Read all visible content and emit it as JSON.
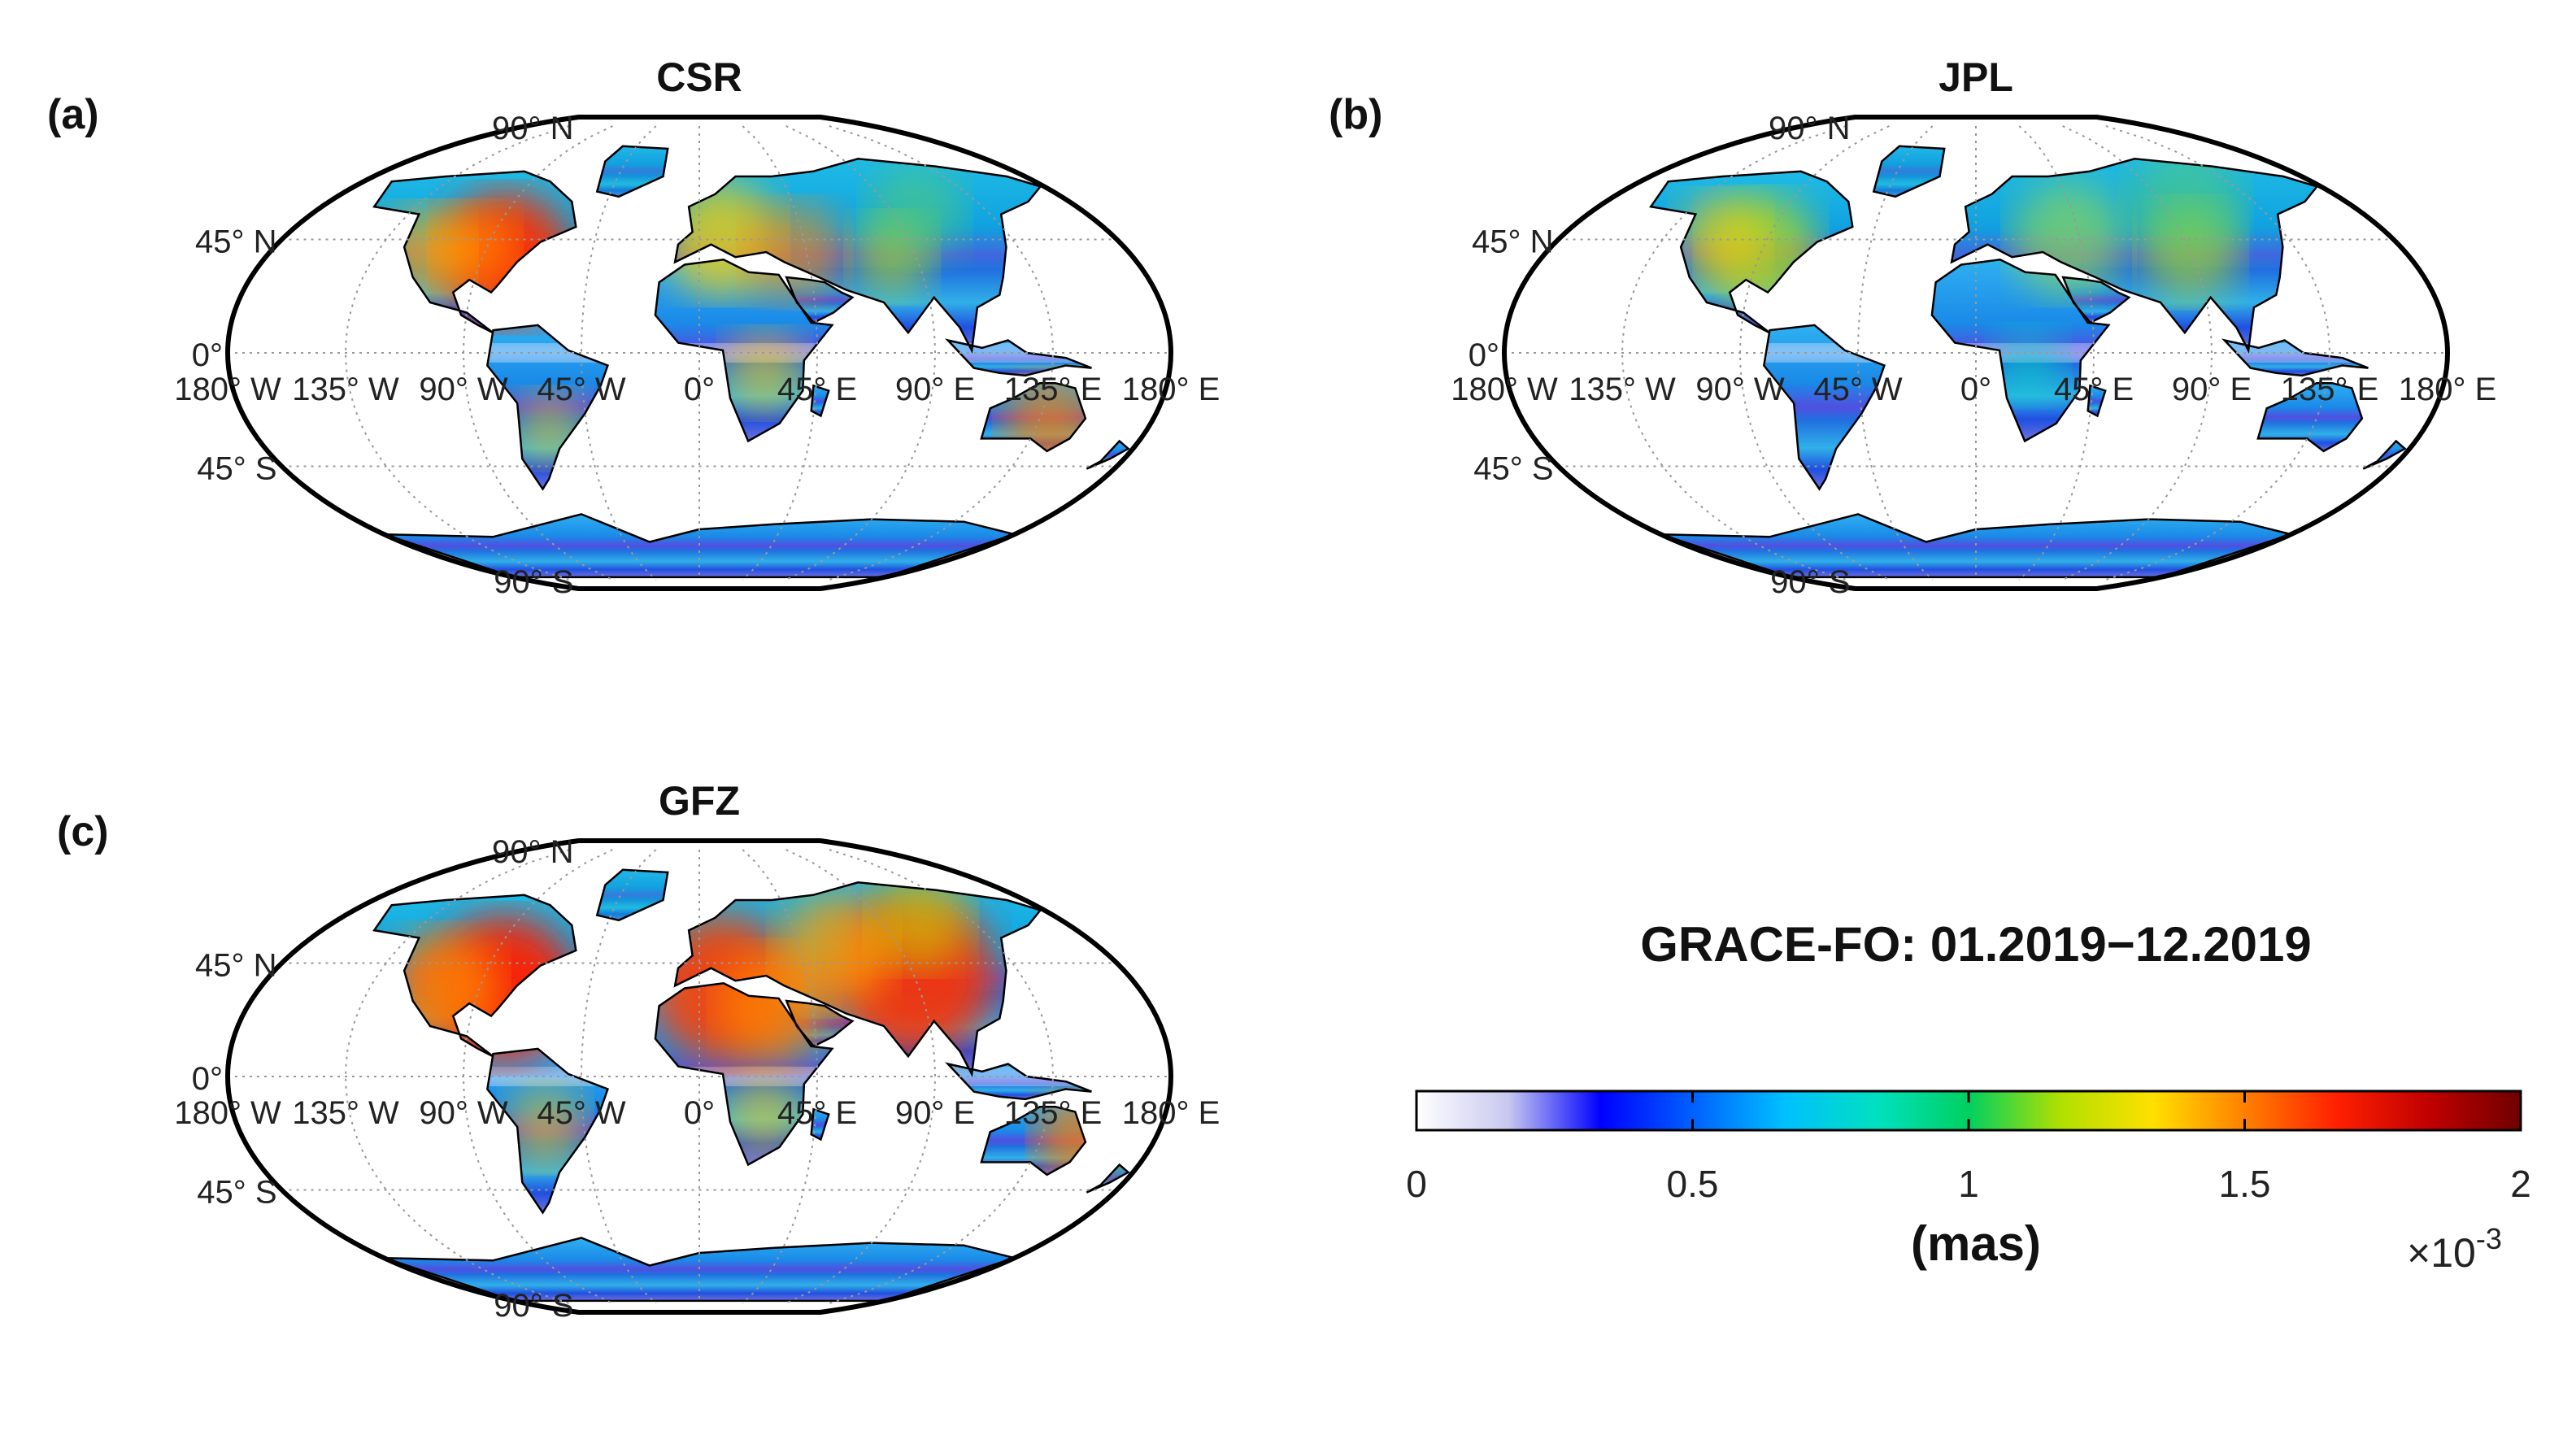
{
  "figure": {
    "panels": [
      {
        "letter": "(a)",
        "title": "CSR",
        "variant": "csr"
      },
      {
        "letter": "(b)",
        "title": "JPL",
        "variant": "jpl"
      },
      {
        "letter": "(c)",
        "title": "GFZ",
        "variant": "gfz"
      }
    ],
    "lat_labels": [
      "90° N",
      "45° N",
      "0°",
      "45° S",
      "90° S"
    ],
    "lon_labels": [
      "180° W",
      "135° W",
      "90° W",
      "45° W",
      "0°",
      "45° E",
      "90° E",
      "135° E",
      "180° E"
    ],
    "colorbar": {
      "heading": "GRACE-FO: 01.2019−12.2019",
      "ticks": [
        "0",
        "0.5",
        "1",
        "1.5",
        "2"
      ],
      "unit": "(mas)",
      "multiplier": "×10",
      "exponent": "-3",
      "range": [
        0,
        2
      ],
      "colormap": [
        "#ffffff",
        "#c8c8f0",
        "#0000ff",
        "#0060ff",
        "#00c0ff",
        "#00e0c0",
        "#00d060",
        "#b0e000",
        "#ffe000",
        "#ff8000",
        "#ff2000",
        "#c00000",
        "#700000"
      ]
    }
  }
}
